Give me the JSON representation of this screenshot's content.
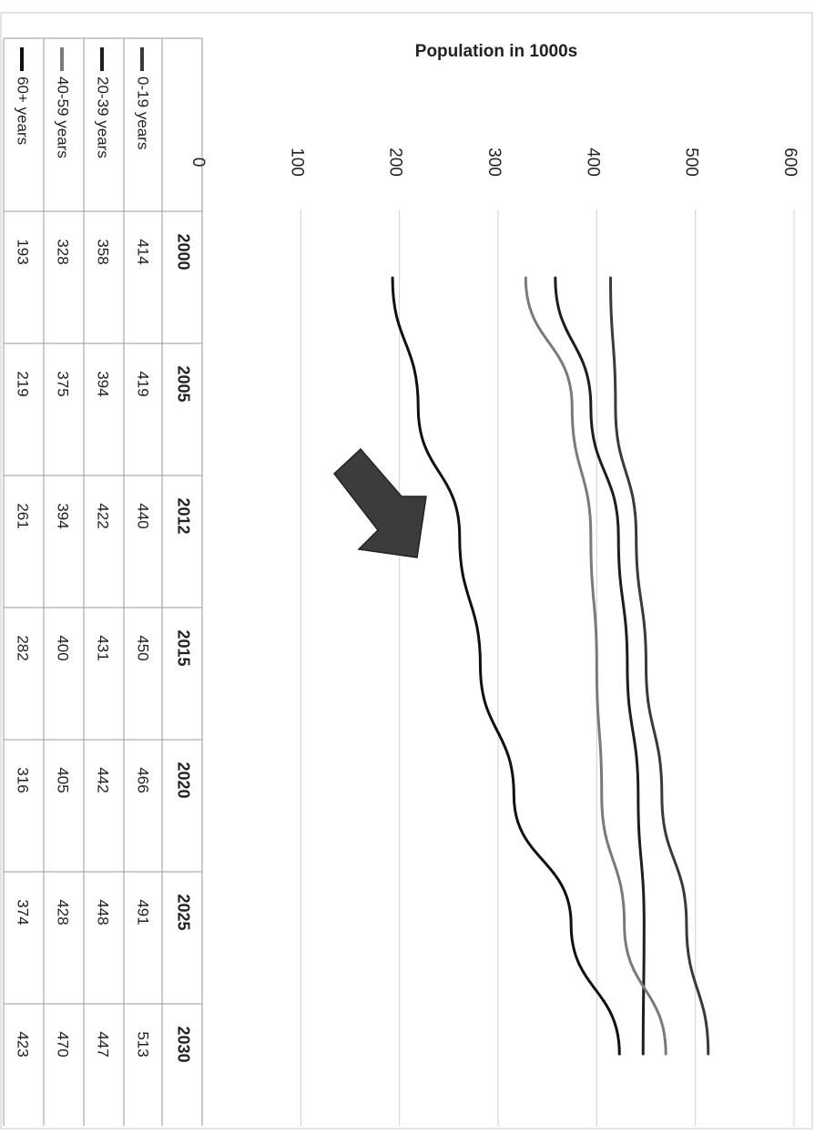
{
  "chart_data": {
    "type": "line",
    "title": "Population in 1000s",
    "categories": [
      "2000",
      "2005",
      "2012",
      "2015",
      "2020",
      "2025",
      "2030"
    ],
    "ylim": [
      0,
      600
    ],
    "yticks": [
      "0",
      "100",
      "200",
      "300",
      "400",
      "500",
      "600"
    ],
    "grid": true,
    "legend_placement": "data-table",
    "series": [
      {
        "name": "0-19 years",
        "values": [
          414,
          419,
          440,
          450,
          466,
          491,
          513
        ],
        "color": "#3a3a3a"
      },
      {
        "name": "20-39 years",
        "values": [
          358,
          394,
          422,
          431,
          442,
          448,
          447
        ],
        "color": "#1e1e1e"
      },
      {
        "name": "40-59 years",
        "values": [
          328,
          375,
          394,
          400,
          405,
          428,
          470
        ],
        "color": "#7a7a7a"
      },
      {
        "name": "60+ years",
        "values": [
          193,
          219,
          261,
          282,
          316,
          374,
          423
        ],
        "color": "#101010"
      }
    ],
    "table_cells": {
      "0-19 years": [
        "414",
        "419",
        "440",
        "450",
        "466",
        "491",
        "513"
      ],
      "20-39 years": [
        "358",
        "394",
        "422",
        "431",
        "442",
        "448",
        "447"
      ],
      "40-59 years": [
        "328",
        "375",
        "394",
        "400",
        "405",
        "428",
        "470"
      ],
      "60+ years": [
        "193",
        "219",
        "261",
        "282",
        "316",
        "374",
        "423"
      ]
    }
  }
}
